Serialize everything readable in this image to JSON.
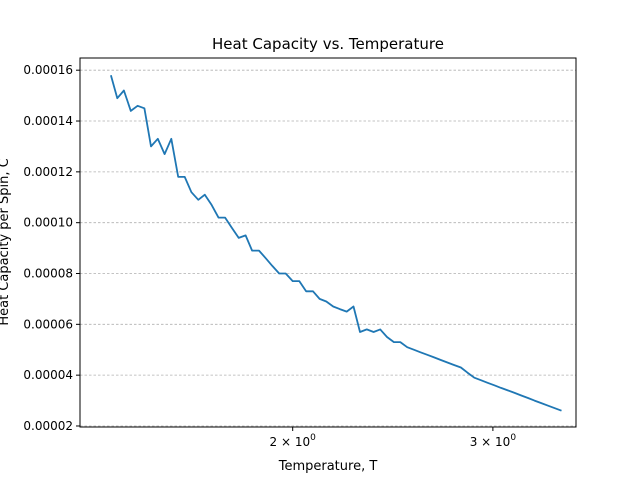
{
  "chart_data": {
    "type": "line",
    "title": "Heat Capacity vs. Temperature",
    "xlabel": "Temperature, T",
    "ylabel": "Heat Capacity per Spin, C",
    "xscale": "log",
    "xlim": [
      1.3,
      3.55
    ],
    "ylim": [
      1.96e-05,
      0.0001648
    ],
    "grid": "y-dashed",
    "x_ticks": [
      {
        "value": 2,
        "base": "2 × 10",
        "exp": "0"
      },
      {
        "value": 3,
        "base": "3 × 10",
        "exp": "0"
      }
    ],
    "y_ticks": [
      {
        "value": 2e-05,
        "label": "0.00002"
      },
      {
        "value": 4e-05,
        "label": "0.00004"
      },
      {
        "value": 6e-05,
        "label": "0.00006"
      },
      {
        "value": 8e-05,
        "label": "0.00008"
      },
      {
        "value": 0.0001,
        "label": "0.00010"
      },
      {
        "value": 0.00012,
        "label": "0.00012"
      },
      {
        "value": 0.00014,
        "label": "0.00014"
      },
      {
        "value": 0.00016,
        "label": "0.00016"
      }
    ],
    "series": [
      {
        "color": "#1f77b4",
        "x": [
          1.384,
          1.402,
          1.421,
          1.441,
          1.461,
          1.481,
          1.501,
          1.522,
          1.543,
          1.564,
          1.586,
          1.607,
          1.629,
          1.652,
          1.674,
          1.697,
          1.721,
          1.744,
          1.768,
          1.793,
          1.818,
          1.842,
          1.868,
          1.894,
          1.919,
          1.946,
          1.972,
          2.0,
          2.027,
          2.055,
          2.084,
          2.112,
          2.141,
          2.171,
          2.2,
          2.231,
          2.262,
          2.292,
          2.324,
          2.356,
          2.388,
          2.421,
          2.455,
          2.487,
          2.522,
          2.556,
          2.591,
          2.627,
          2.663,
          2.698,
          2.736,
          2.773,
          2.812,
          2.849,
          2.889,
          2.928,
          2.968,
          3.009,
          3.05,
          3.092,
          3.135,
          3.178,
          3.221,
          3.264,
          3.309,
          3.355,
          3.401,
          3.447
        ],
        "y": [
          0.000158,
          0.000149,
          0.000152,
          0.000144,
          0.000146,
          0.000145,
          0.00013,
          0.000133,
          0.000127,
          0.000133,
          0.000118,
          0.000118,
          0.000112,
          0.000109,
          0.000111,
          0.000107,
          0.000102,
          0.000102,
          9.8e-05,
          9.4e-05,
          9.5e-05,
          8.9e-05,
          8.9e-05,
          8.6e-05,
          8.3e-05,
          8e-05,
          8e-05,
          7.7e-05,
          7.7e-05,
          7.3e-05,
          7.3e-05,
          7e-05,
          6.9e-05,
          6.7e-05,
          6.6e-05,
          6.5e-05,
          6.7e-05,
          5.7e-05,
          5.8e-05,
          5.7e-05,
          5.8e-05,
          5.5e-05,
          5.3e-05,
          5.3e-05,
          5.1e-05,
          5e-05,
          4.9e-05,
          4.8e-05,
          4.7e-05,
          4.6e-05,
          4.5e-05,
          4.4e-05,
          4.3e-05,
          4.1e-05,
          3.9e-05,
          3.8e-05,
          3.7e-05,
          3.6e-05,
          3.5e-05,
          3.4e-05,
          3.3e-05,
          3.2e-05,
          3.1e-05,
          3e-05,
          2.9e-05,
          2.8e-05,
          2.7e-05,
          2.6e-05
        ]
      }
    ]
  }
}
